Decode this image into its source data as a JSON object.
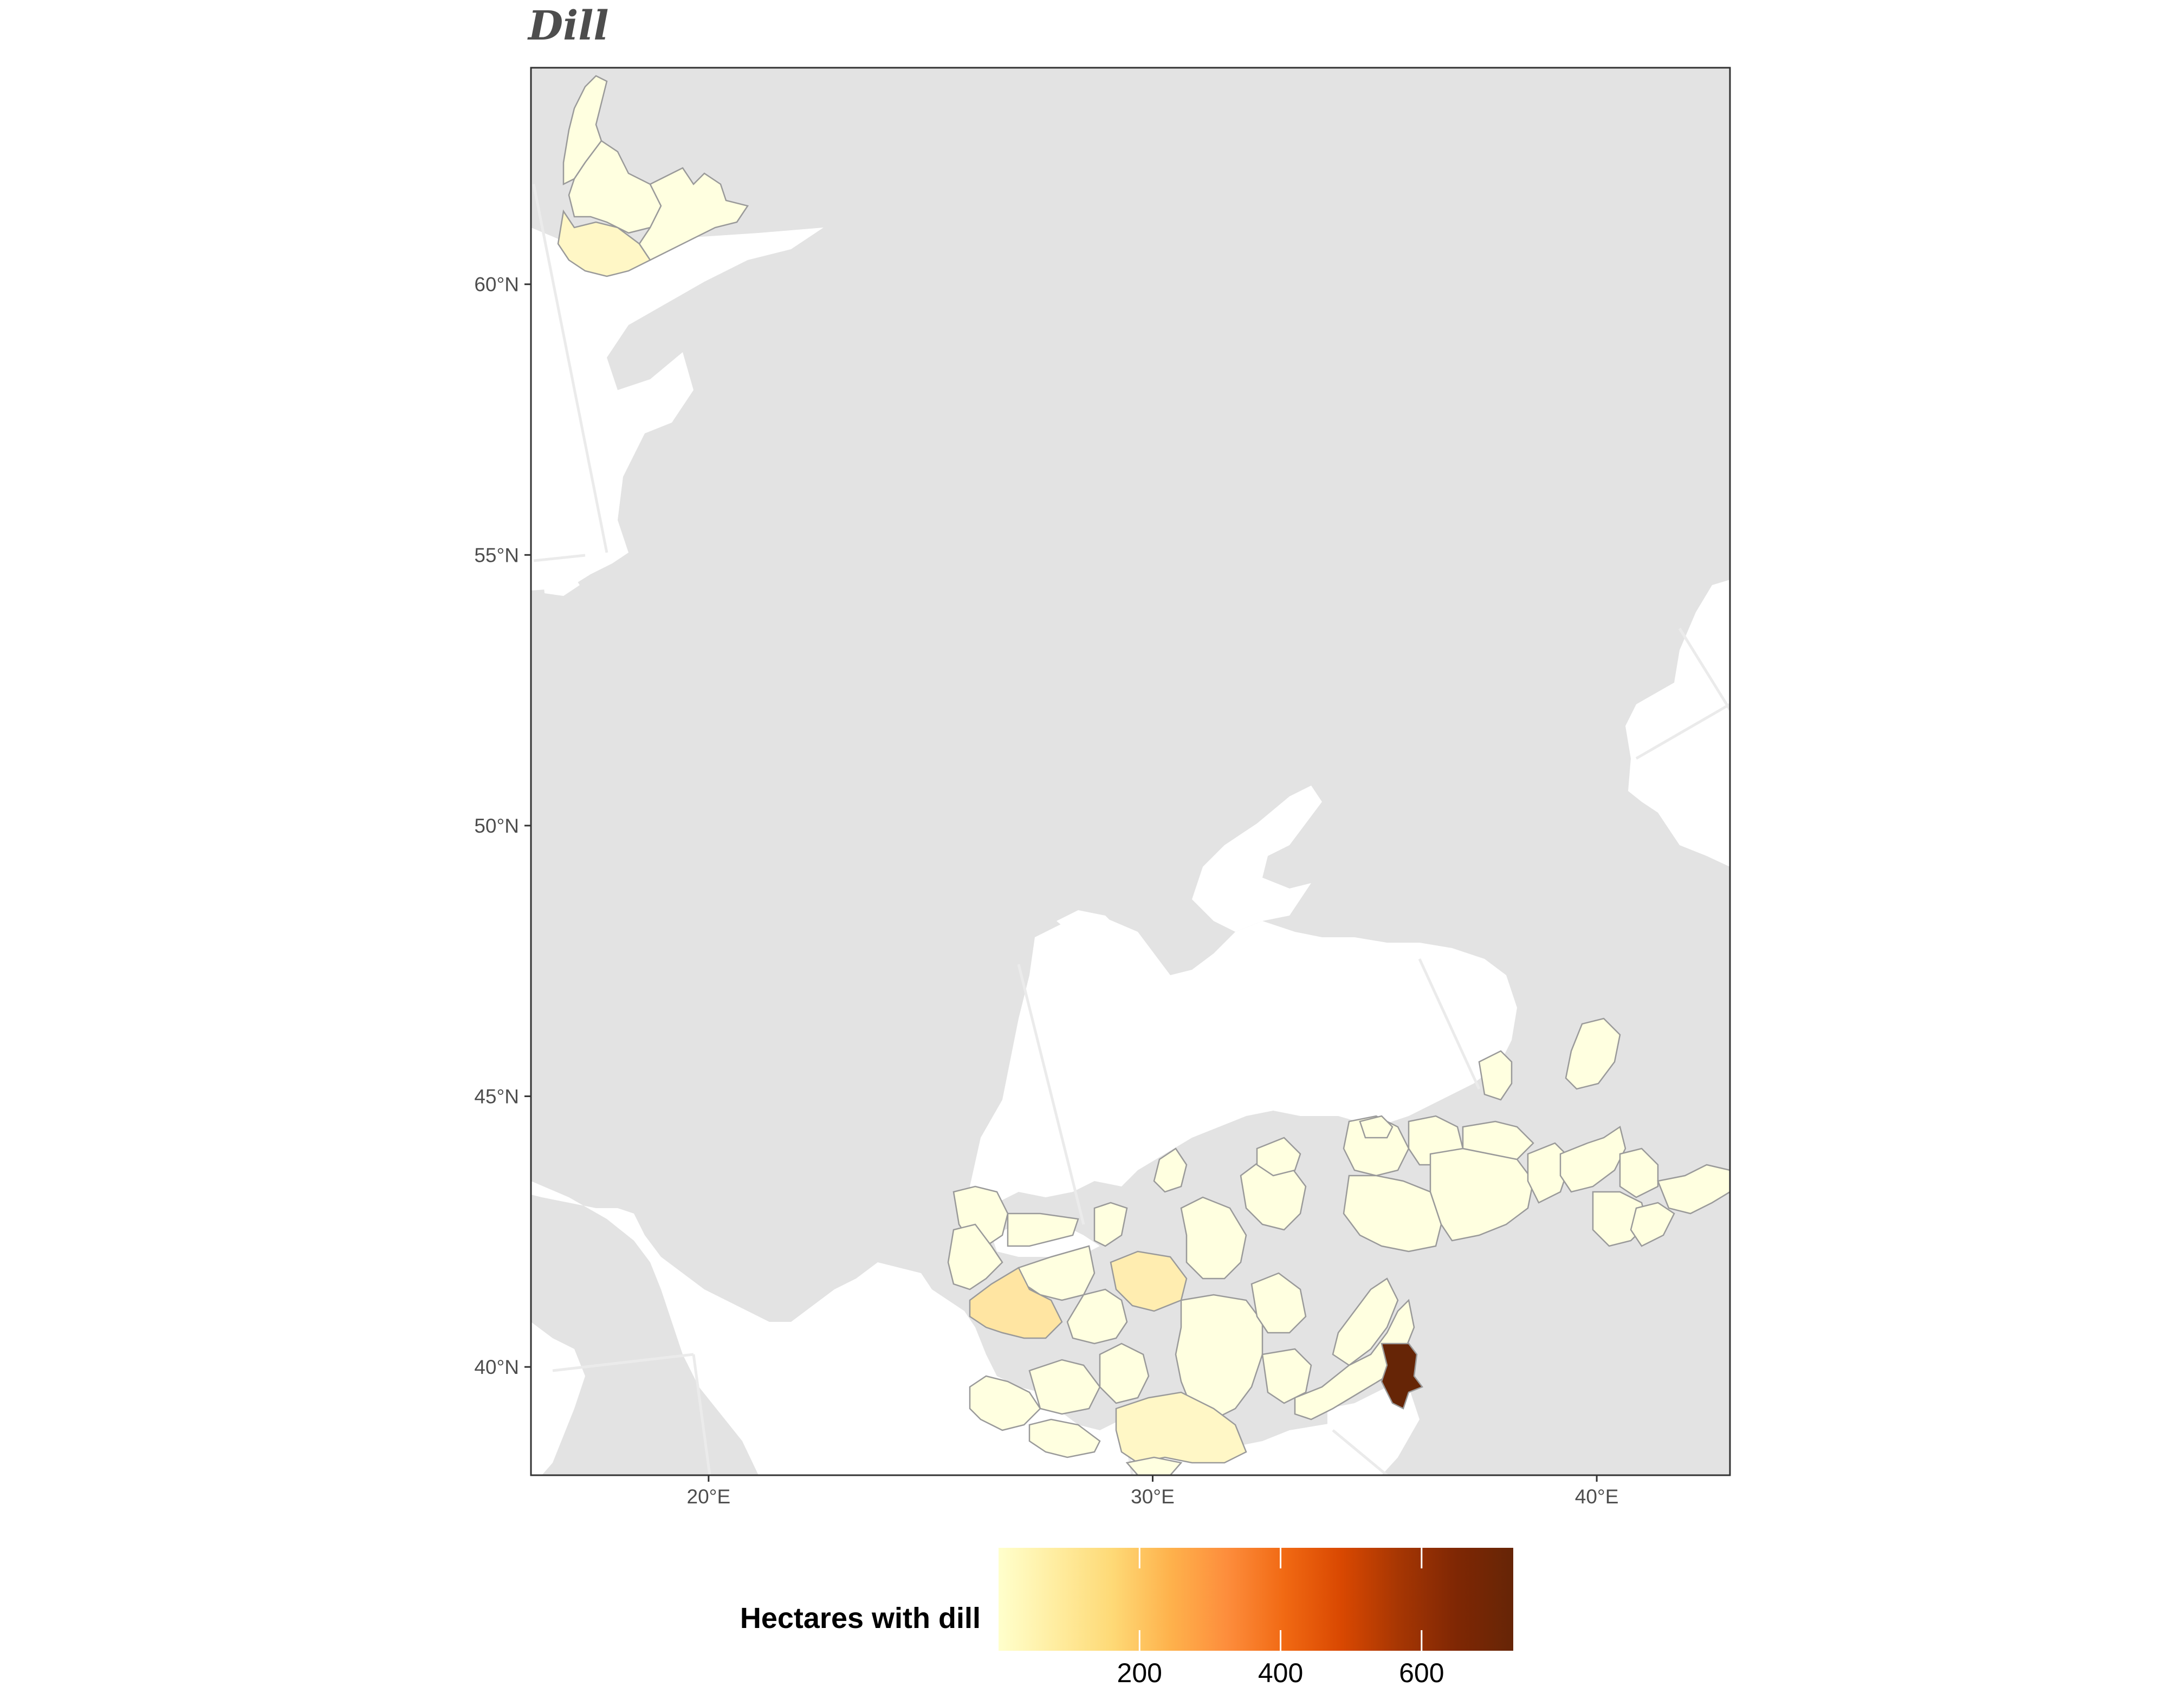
{
  "title": "Dill",
  "axes": {
    "y_ticks": [
      "60°N",
      "55°N",
      "50°N",
      "45°N",
      "40°N"
    ],
    "x_ticks": [
      "20°E",
      "30°E",
      "40°E"
    ]
  },
  "legend": {
    "title": "Hectares with dill",
    "ticks": [
      "200",
      "400",
      "600"
    ],
    "gradient": [
      "#ffffcc",
      "#ffeda0",
      "#fed976",
      "#feb24c",
      "#fd8d3c",
      "#f16913",
      "#d94801",
      "#a63603",
      "#7f2704",
      "#662506"
    ]
  },
  "colors": {
    "panel": "#e3e3e3",
    "land": "#ffffff",
    "region_border": "#999999",
    "graticule": "#ebebeb"
  },
  "chart_data": {
    "type": "choropleth",
    "title": "Dill",
    "variable": "Hectares with dill",
    "color_scale": {
      "min": 0,
      "max": 730,
      "ticks": [
        200,
        400,
        600
      ]
    },
    "lon_range": [
      16,
      43
    ],
    "lat_range": [
      38,
      64
    ],
    "regions": [
      {
        "name": "",
        "value": 20
      },
      {
        "name": "",
        "value": 60
      },
      {
        "name": "",
        "value": 130
      },
      {
        "name": "",
        "value": 110
      },
      {
        "name": "",
        "value": 70
      },
      {
        "name": "",
        "value": 40
      },
      {
        "name": "",
        "value": 700
      }
    ]
  }
}
